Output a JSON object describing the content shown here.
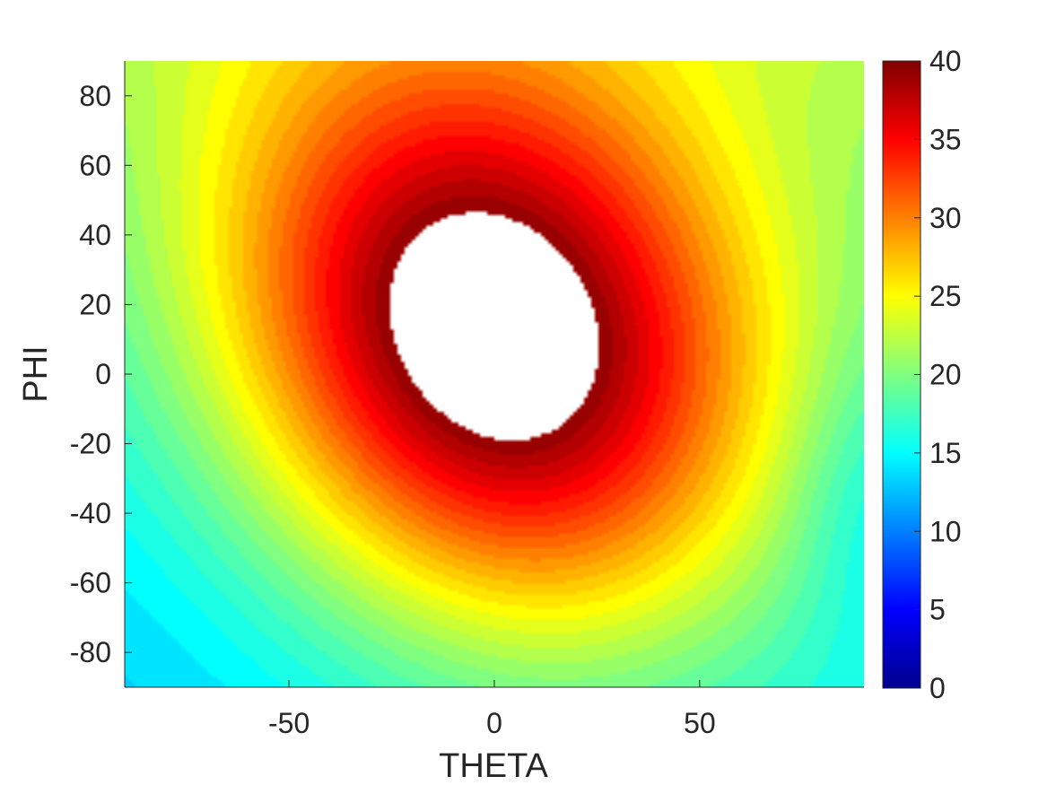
{
  "chart_data": {
    "type": "heatmap",
    "xlabel": "THETA",
    "ylabel": "PHI",
    "xlim": [
      -90,
      90
    ],
    "ylim": [
      -90,
      90
    ],
    "xticks": [
      -50,
      0,
      50
    ],
    "yticks": [
      -80,
      -60,
      -40,
      -20,
      0,
      20,
      40,
      60,
      80
    ],
    "colorbar": {
      "colormap": "jet",
      "clim": [
        0,
        40
      ],
      "ticks": [
        0,
        5,
        10,
        15,
        20,
        25,
        30,
        35,
        40
      ]
    },
    "field": {
      "peak_value": 40,
      "peak_center": [
        0,
        8
      ],
      "edge_min_value": 25.5,
      "edge_min_location": [
        90,
        -35
      ],
      "top_edge_value": 30,
      "blank_region_center": [
        -3,
        12
      ],
      "blank_region_note": "values above colorbar maximum are not drawn"
    },
    "grid": false,
    "colorbar_location": "right"
  }
}
